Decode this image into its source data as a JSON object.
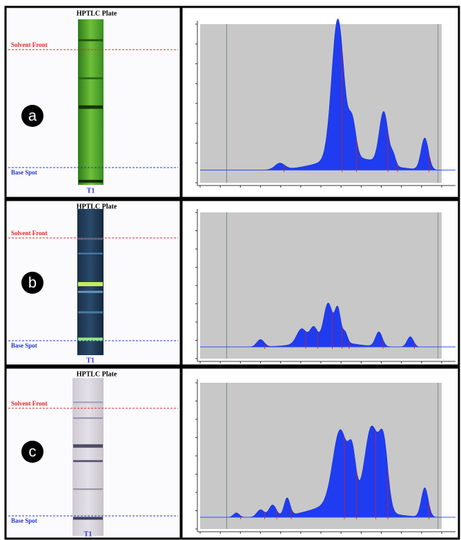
{
  "panels": [
    {
      "label": "a",
      "plate": {
        "title": "HPTLC Plate",
        "solvent_front": "Solvent Front",
        "base_spot": "Base Spot",
        "lane": "T1"
      }
    },
    {
      "label": "b",
      "plate": {
        "title": "HPTLC Plate",
        "solvent_front": "Solvent Front",
        "base_spot": "Base Spot",
        "lane": "T1"
      }
    },
    {
      "label": "c",
      "plate": {
        "title": "HPTLC Plate",
        "solvent_front": "Solvent Front",
        "base_spot": "Base Spot",
        "lane": "T1"
      }
    }
  ]
}
